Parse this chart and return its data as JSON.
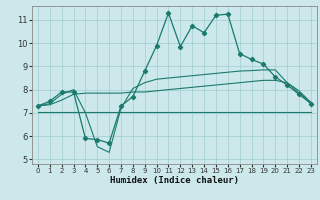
{
  "background_color": "#cce8ea",
  "grid_color": "#a0ccce",
  "line_color": "#1a7a6e",
  "xlabel": "Humidex (Indice chaleur)",
  "xlim": [
    -0.5,
    23.5
  ],
  "ylim": [
    4.8,
    11.6
  ],
  "yticks": [
    5,
    6,
    7,
    8,
    9,
    10,
    11
  ],
  "xticks": [
    0,
    1,
    2,
    3,
    4,
    5,
    6,
    7,
    8,
    9,
    10,
    11,
    12,
    13,
    14,
    15,
    16,
    17,
    18,
    19,
    20,
    21,
    22,
    23
  ],
  "line1_x": [
    0,
    1,
    2,
    3,
    4,
    5,
    6,
    7,
    8,
    9,
    10,
    11,
    12,
    13,
    14,
    15,
    16,
    17,
    18,
    19,
    20,
    21,
    22,
    23
  ],
  "line1_y": [
    7.3,
    7.5,
    7.9,
    7.9,
    5.9,
    5.85,
    5.7,
    7.3,
    7.7,
    8.8,
    9.9,
    11.3,
    9.85,
    10.75,
    10.45,
    11.2,
    11.25,
    9.55,
    9.3,
    9.1,
    8.55,
    8.2,
    7.8,
    7.4
  ],
  "line2_x": [
    0,
    1,
    2,
    3,
    4,
    5,
    6,
    7,
    8,
    9,
    10,
    11,
    12,
    13,
    14,
    15,
    16,
    17,
    18,
    19,
    20,
    21,
    22,
    23
  ],
  "line2_y": [
    7.3,
    7.4,
    7.8,
    8.0,
    7.0,
    5.55,
    5.3,
    7.2,
    8.05,
    8.3,
    8.45,
    8.5,
    8.55,
    8.6,
    8.65,
    8.7,
    8.75,
    8.8,
    8.82,
    8.85,
    8.85,
    8.3,
    7.85,
    7.45
  ],
  "line3_x": [
    0,
    1,
    2,
    3,
    4,
    5,
    6,
    7,
    8,
    9,
    10,
    11,
    12,
    13,
    14,
    15,
    16,
    17,
    18,
    19,
    20,
    21,
    22,
    23
  ],
  "line3_y": [
    7.3,
    7.35,
    7.55,
    7.8,
    7.85,
    7.85,
    7.85,
    7.85,
    7.9,
    7.9,
    7.95,
    8.0,
    8.05,
    8.1,
    8.15,
    8.2,
    8.25,
    8.3,
    8.35,
    8.4,
    8.4,
    8.3,
    7.95,
    7.45
  ],
  "line4_x": [
    0,
    23
  ],
  "line4_y": [
    7.05,
    7.05
  ]
}
